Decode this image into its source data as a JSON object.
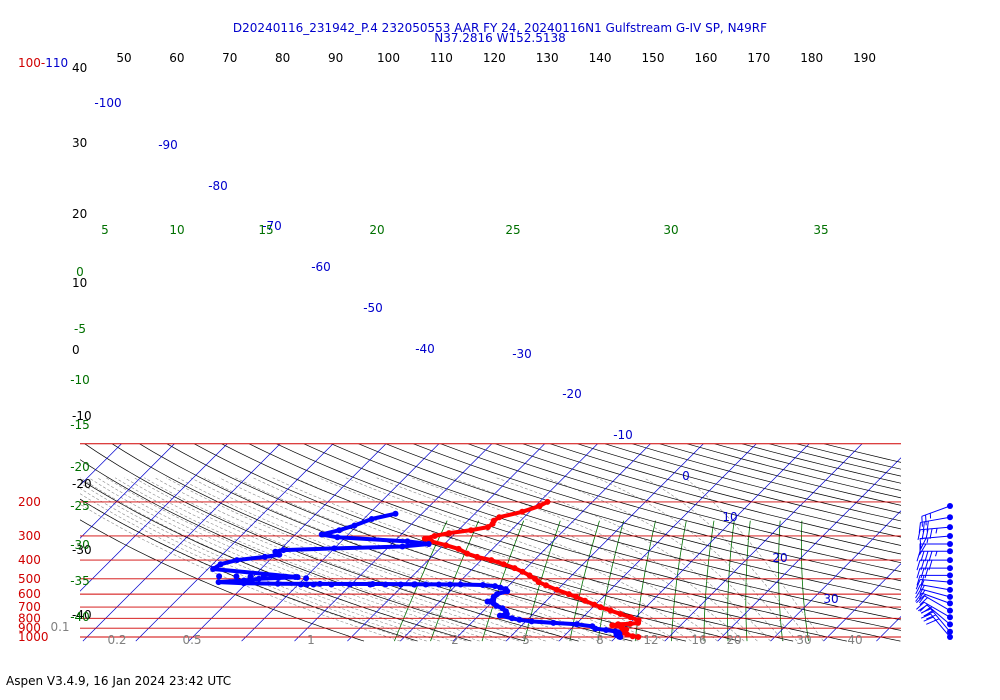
{
  "header": {
    "title_line1": "D20240116_231942_P.4 232050553 AAR FY 24, 20240116N1 Gulfstream G-IV SP, N49RF",
    "title_line2": "N37.2816 W152.5138"
  },
  "footer": {
    "version_text": "Aspen V3.4.9, 16 Jan 2024  23:42 UTC"
  },
  "colors": {
    "isobar": "#d00000",
    "isotherm": "#0000cc",
    "dry_adiabat": "#000000",
    "moist_adiabat": "#8a8a8a",
    "mixing_ratio": "#007000",
    "temperature": "#ff0000",
    "dewpoint": "#0000ff",
    "barb": "#0000ff"
  },
  "chart_data": {
    "type": "skew-t log-p",
    "pressure_labels": [
      {
        "p": 200,
        "text": "200"
      },
      {
        "p": 300,
        "text": "300"
      },
      {
        "p": 400,
        "text": "400"
      },
      {
        "p": 500,
        "text": "500"
      },
      {
        "p": 600,
        "text": "600"
      },
      {
        "p": 700,
        "text": "700"
      },
      {
        "p": 800,
        "text": "800"
      },
      {
        "p": 900,
        "text": "900"
      },
      {
        "p": 1000,
        "text": "1000"
      }
    ],
    "top_pressure_label": "100-110",
    "top_theta_labels": [
      "50",
      "60",
      "70",
      "80",
      "90",
      "100",
      "110",
      "120",
      "130",
      "140",
      "150",
      "160",
      "170",
      "180",
      "190"
    ],
    "left_theta_labels": [
      "40",
      "30",
      "20",
      "10",
      "0",
      "-10",
      "-20",
      "-30",
      "-40"
    ],
    "isotherm_labels": [
      {
        "t": -100,
        "text": "-100"
      },
      {
        "t": -90,
        "text": "-90"
      },
      {
        "t": -80,
        "text": "-80"
      },
      {
        "t": -70,
        "text": "-70"
      },
      {
        "t": -60,
        "text": "-60"
      },
      {
        "t": -50,
        "text": "-50"
      },
      {
        "t": -40,
        "text": "-40"
      },
      {
        "t": -30,
        "text": "-30"
      },
      {
        "t": -20,
        "text": "-20"
      },
      {
        "t": -10,
        "text": "-10"
      },
      {
        "t": 0,
        "text": "0"
      },
      {
        "t": 10,
        "text": "10"
      },
      {
        "t": 20,
        "text": "20"
      },
      {
        "t": 30,
        "text": "30"
      }
    ],
    "moist_adiabat_labels_top": [
      "5",
      "10",
      "15",
      "20",
      "25",
      "30",
      "35"
    ],
    "moist_adiabat_labels_left": [
      "0",
      "-5",
      "-10",
      "-15",
      "-20",
      "-25",
      "-30",
      "-35",
      "-40"
    ],
    "mixing_ratio_labels": [
      "0.1",
      "0.2",
      "0.5",
      "1",
      "2",
      "5",
      "8",
      "12",
      "16",
      "20",
      "30",
      "40"
    ],
    "temperature_profile": [
      {
        "p": 200,
        "t": -38.5
      },
      {
        "p": 210,
        "t": -39.2
      },
      {
        "p": 225,
        "t": -41.4
      },
      {
        "p": 240,
        "t": -44.7
      },
      {
        "p": 250,
        "t": -45.1
      },
      {
        "p": 260,
        "t": -44.7
      },
      {
        "p": 270,
        "t": -45.0
      },
      {
        "p": 280,
        "t": -47.6
      },
      {
        "p": 290,
        "t": -51.2
      },
      {
        "p": 300,
        "t": -53.4
      },
      {
        "p": 310,
        "t": -54.7
      },
      {
        "p": 320,
        "t": -53.0
      },
      {
        "p": 335,
        "t": -49.5
      },
      {
        "p": 350,
        "t": -46.4
      },
      {
        "p": 370,
        "t": -43.9
      },
      {
        "p": 385,
        "t": -41.4
      },
      {
        "p": 400,
        "t": -38.1
      },
      {
        "p": 420,
        "t": -35.0
      },
      {
        "p": 440,
        "t": -32.2
      },
      {
        "p": 460,
        "t": -30.0
      },
      {
        "p": 480,
        "t": -28.0
      },
      {
        "p": 500,
        "t": -26.3
      },
      {
        "p": 520,
        "t": -25.0
      },
      {
        "p": 540,
        "t": -23.0
      },
      {
        "p": 570,
        "t": -20.1
      },
      {
        "p": 600,
        "t": -17.0
      },
      {
        "p": 620,
        "t": -15.1
      },
      {
        "p": 650,
        "t": -12.7
      },
      {
        "p": 680,
        "t": -10.2
      },
      {
        "p": 700,
        "t": -8.6
      },
      {
        "p": 730,
        "t": -6.0
      },
      {
        "p": 760,
        "t": -3.5
      },
      {
        "p": 790,
        "t": -1.0
      },
      {
        "p": 820,
        "t": 1.1
      },
      {
        "p": 845,
        "t": 1.5
      },
      {
        "p": 855,
        "t": 0.2
      },
      {
        "p": 860,
        "t": -2.0
      },
      {
        "p": 870,
        "t": -2.9
      },
      {
        "p": 890,
        "t": -0.8
      },
      {
        "p": 915,
        "t": 0.5
      },
      {
        "p": 930,
        "t": 0.1
      },
      {
        "p": 950,
        "t": 0.5
      },
      {
        "p": 970,
        "t": 1.6
      },
      {
        "p": 990,
        "t": 3.0
      },
      {
        "p": 1000,
        "t": 4.2
      }
    ],
    "dewpoint_profile": [
      {
        "p": 230,
        "td": -65.0
      },
      {
        "p": 245,
        "td": -68.5
      },
      {
        "p": 265,
        "td": -70.5
      },
      {
        "p": 280,
        "td": -72.5
      },
      {
        "p": 295,
        "td": -75.0
      },
      {
        "p": 305,
        "td": -71.5
      },
      {
        "p": 320,
        "td": -57.5
      },
      {
        "p": 330,
        "td": -53.0
      },
      {
        "p": 340,
        "td": -57.5
      },
      {
        "p": 348,
        "td": -70.0
      },
      {
        "p": 355,
        "td": -79.3
      },
      {
        "p": 362,
        "td": -80.5
      },
      {
        "p": 375,
        "td": -79.2
      },
      {
        "p": 385,
        "td": -81.5
      },
      {
        "p": 400,
        "td": -86.2
      },
      {
        "p": 420,
        "td": -88.5
      },
      {
        "p": 445,
        "td": -89.0
      },
      {
        "p": 490,
        "td": -71.5
      },
      {
        "p": 495,
        "td": -75.0
      },
      {
        "p": 500,
        "td": -78.5
      },
      {
        "p": 510,
        "td": -81.0
      },
      {
        "p": 520,
        "td": -85.5
      },
      {
        "p": 527,
        "td": -80.5
      },
      {
        "p": 530,
        "td": -74.0
      },
      {
        "p": 531,
        "td": -66.0
      },
      {
        "p": 532,
        "td": -56.0
      },
      {
        "p": 533,
        "td": -48.0
      },
      {
        "p": 535,
        "td": -39.3
      },
      {
        "p": 538,
        "td": -35.0
      },
      {
        "p": 545,
        "td": -32.5
      },
      {
        "p": 555,
        "td": -31.2
      },
      {
        "p": 565,
        "td": -29.9
      },
      {
        "p": 580,
        "td": -29.2
      },
      {
        "p": 600,
        "td": -30.6
      },
      {
        "p": 620,
        "td": -30.7
      },
      {
        "p": 640,
        "td": -30.3
      },
      {
        "p": 655,
        "td": -31.0
      },
      {
        "p": 670,
        "td": -29.5
      },
      {
        "p": 690,
        "td": -28.5
      },
      {
        "p": 710,
        "td": -26.9
      },
      {
        "p": 735,
        "td": -25.7
      },
      {
        "p": 760,
        "td": -25.0
      },
      {
        "p": 775,
        "td": -26.0
      },
      {
        "p": 800,
        "td": -23.2
      },
      {
        "p": 815,
        "td": -21.5
      },
      {
        "p": 830,
        "td": -18.9
      },
      {
        "p": 845,
        "td": -14.5
      },
      {
        "p": 860,
        "td": -9.8
      },
      {
        "p": 880,
        "td": -6.5
      },
      {
        "p": 905,
        "td": -5.5
      },
      {
        "p": 920,
        "td": -3.2
      },
      {
        "p": 935,
        "td": -1.2
      },
      {
        "p": 945,
        "td": -0.5
      },
      {
        "p": 960,
        "td": 0.0
      },
      {
        "p": 975,
        "td": -0.3
      },
      {
        "p": 995,
        "td": 0.5
      },
      {
        "p": 1000,
        "td": 0.8
      }
    ],
    "dewpoint_scatter": [
      {
        "p": 485,
        "td": -86.5
      },
      {
        "p": 486,
        "td": -83.2
      },
      {
        "p": 487,
        "td": -80.5
      },
      {
        "p": 487,
        "td": -78.0
      },
      {
        "p": 488,
        "td": -75.8
      },
      {
        "p": 488,
        "td": -73.8
      },
      {
        "p": 489,
        "td": -72.0
      },
      {
        "p": 496,
        "td": -69.7
      },
      {
        "p": 535,
        "td": -69.5
      },
      {
        "p": 535,
        "td": -68.4
      },
      {
        "p": 535,
        "td": -67.1
      },
      {
        "p": 535,
        "td": -63.7
      },
      {
        "p": 535,
        "td": -60.2
      },
      {
        "p": 535,
        "td": -56.4
      },
      {
        "p": 535,
        "td": -53.5
      },
      {
        "p": 535,
        "td": -50.6
      },
      {
        "p": 535,
        "td": -48.1
      },
      {
        "p": 535,
        "td": -45.9
      },
      {
        "p": 535,
        "td": -43.4
      },
      {
        "p": 535,
        "td": -41.3
      }
    ],
    "wind_barbs": [
      {
        "p": 210,
        "speed": 25,
        "dir": 250
      },
      {
        "p": 240,
        "speed": 30,
        "dir": 260
      },
      {
        "p": 270,
        "speed": 45,
        "dir": 265
      },
      {
        "p": 300,
        "speed": 55,
        "dir": 265
      },
      {
        "p": 330,
        "speed": 50,
        "dir": 270
      },
      {
        "p": 360,
        "speed": 45,
        "dir": 270
      },
      {
        "p": 400,
        "speed": 40,
        "dir": 270
      },
      {
        "p": 440,
        "speed": 30,
        "dir": 270
      },
      {
        "p": 480,
        "speed": 20,
        "dir": 270
      },
      {
        "p": 520,
        "speed": 20,
        "dir": 275
      },
      {
        "p": 570,
        "speed": 20,
        "dir": 280
      },
      {
        "p": 620,
        "speed": 20,
        "dir": 285
      },
      {
        "p": 670,
        "speed": 20,
        "dir": 290
      },
      {
        "p": 730,
        "speed": 20,
        "dir": 300
      },
      {
        "p": 790,
        "speed": 25,
        "dir": 300
      },
      {
        "p": 860,
        "speed": 30,
        "dir": 310
      },
      {
        "p": 940,
        "speed": 35,
        "dir": 320
      },
      {
        "p": 1000,
        "speed": 30,
        "dir": 320
      }
    ]
  }
}
